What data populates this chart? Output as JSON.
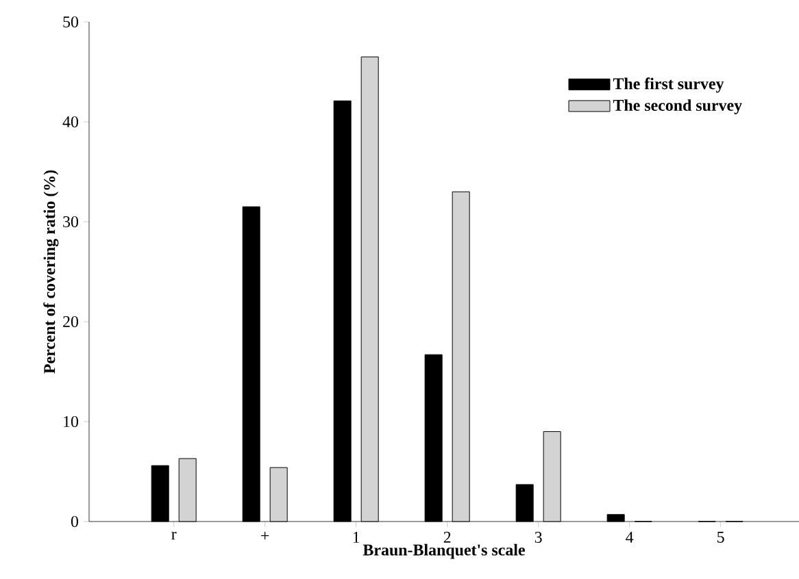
{
  "chart_data": {
    "type": "bar",
    "xlabel": "Braun-Blanquet's scale",
    "ylabel": "Percent of covering ratio (%)",
    "categories": [
      "r",
      "+",
      "1",
      "2",
      "3",
      "4",
      "5"
    ],
    "series": [
      {
        "name": "The first survey",
        "color": "#000000",
        "values": [
          5.6,
          31.5,
          42.1,
          16.7,
          3.7,
          0.7,
          0
        ]
      },
      {
        "name": "The second survey",
        "color": "#d3d3d3",
        "values": [
          6.3,
          5.4,
          46.5,
          33.0,
          9.0,
          0,
          0
        ]
      }
    ],
    "ylim": [
      0,
      50
    ],
    "yticks": [
      0,
      10,
      20,
      30,
      40,
      50
    ],
    "grid": false,
    "legend": "top right"
  }
}
